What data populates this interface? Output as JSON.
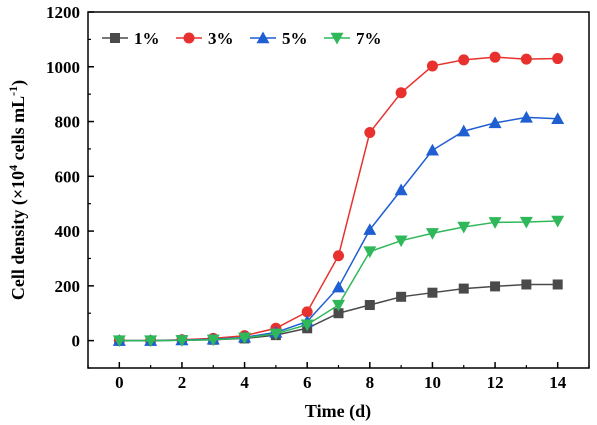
{
  "chart_data": {
    "type": "line",
    "xlabel": "Time (d)",
    "ylabel": {
      "prefix": "Cell density (×10",
      "exp1": "4",
      "middle": " cells mL",
      "exp2": "-1",
      "suffix": ")"
    },
    "xlim": [
      -1,
      15
    ],
    "ylim": [
      -100,
      1200
    ],
    "xticks": [
      0,
      2,
      4,
      6,
      8,
      10,
      12,
      14
    ],
    "yticks": [
      0,
      200,
      400,
      600,
      800,
      1000,
      1200
    ],
    "x": [
      0,
      1,
      2,
      3,
      4,
      5,
      6,
      7,
      8,
      9,
      10,
      11,
      12,
      13,
      14
    ],
    "grid": false,
    "legend": "top-left",
    "series": [
      {
        "name": "1%",
        "color": "#4a4a4a",
        "marker": "square",
        "values": [
          0,
          0,
          2,
          3,
          8,
          20,
          45,
          100,
          130,
          160,
          175,
          190,
          198,
          205,
          205
        ]
      },
      {
        "name": "3%",
        "color": "#e8312e",
        "marker": "circle",
        "values": [
          0,
          0,
          3,
          8,
          18,
          45,
          105,
          310,
          760,
          905,
          1003,
          1025,
          1035,
          1028,
          1030
        ]
      },
      {
        "name": "5%",
        "color": "#1f5fd1",
        "marker": "triangle-up",
        "values": [
          0,
          0,
          2,
          5,
          12,
          30,
          70,
          195,
          405,
          550,
          695,
          765,
          795,
          815,
          810
        ]
      },
      {
        "name": "7%",
        "color": "#2fb85a",
        "marker": "triangle-down",
        "values": [
          0,
          0,
          1,
          3,
          10,
          25,
          58,
          130,
          325,
          365,
          392,
          415,
          432,
          433,
          437
        ]
      }
    ]
  }
}
